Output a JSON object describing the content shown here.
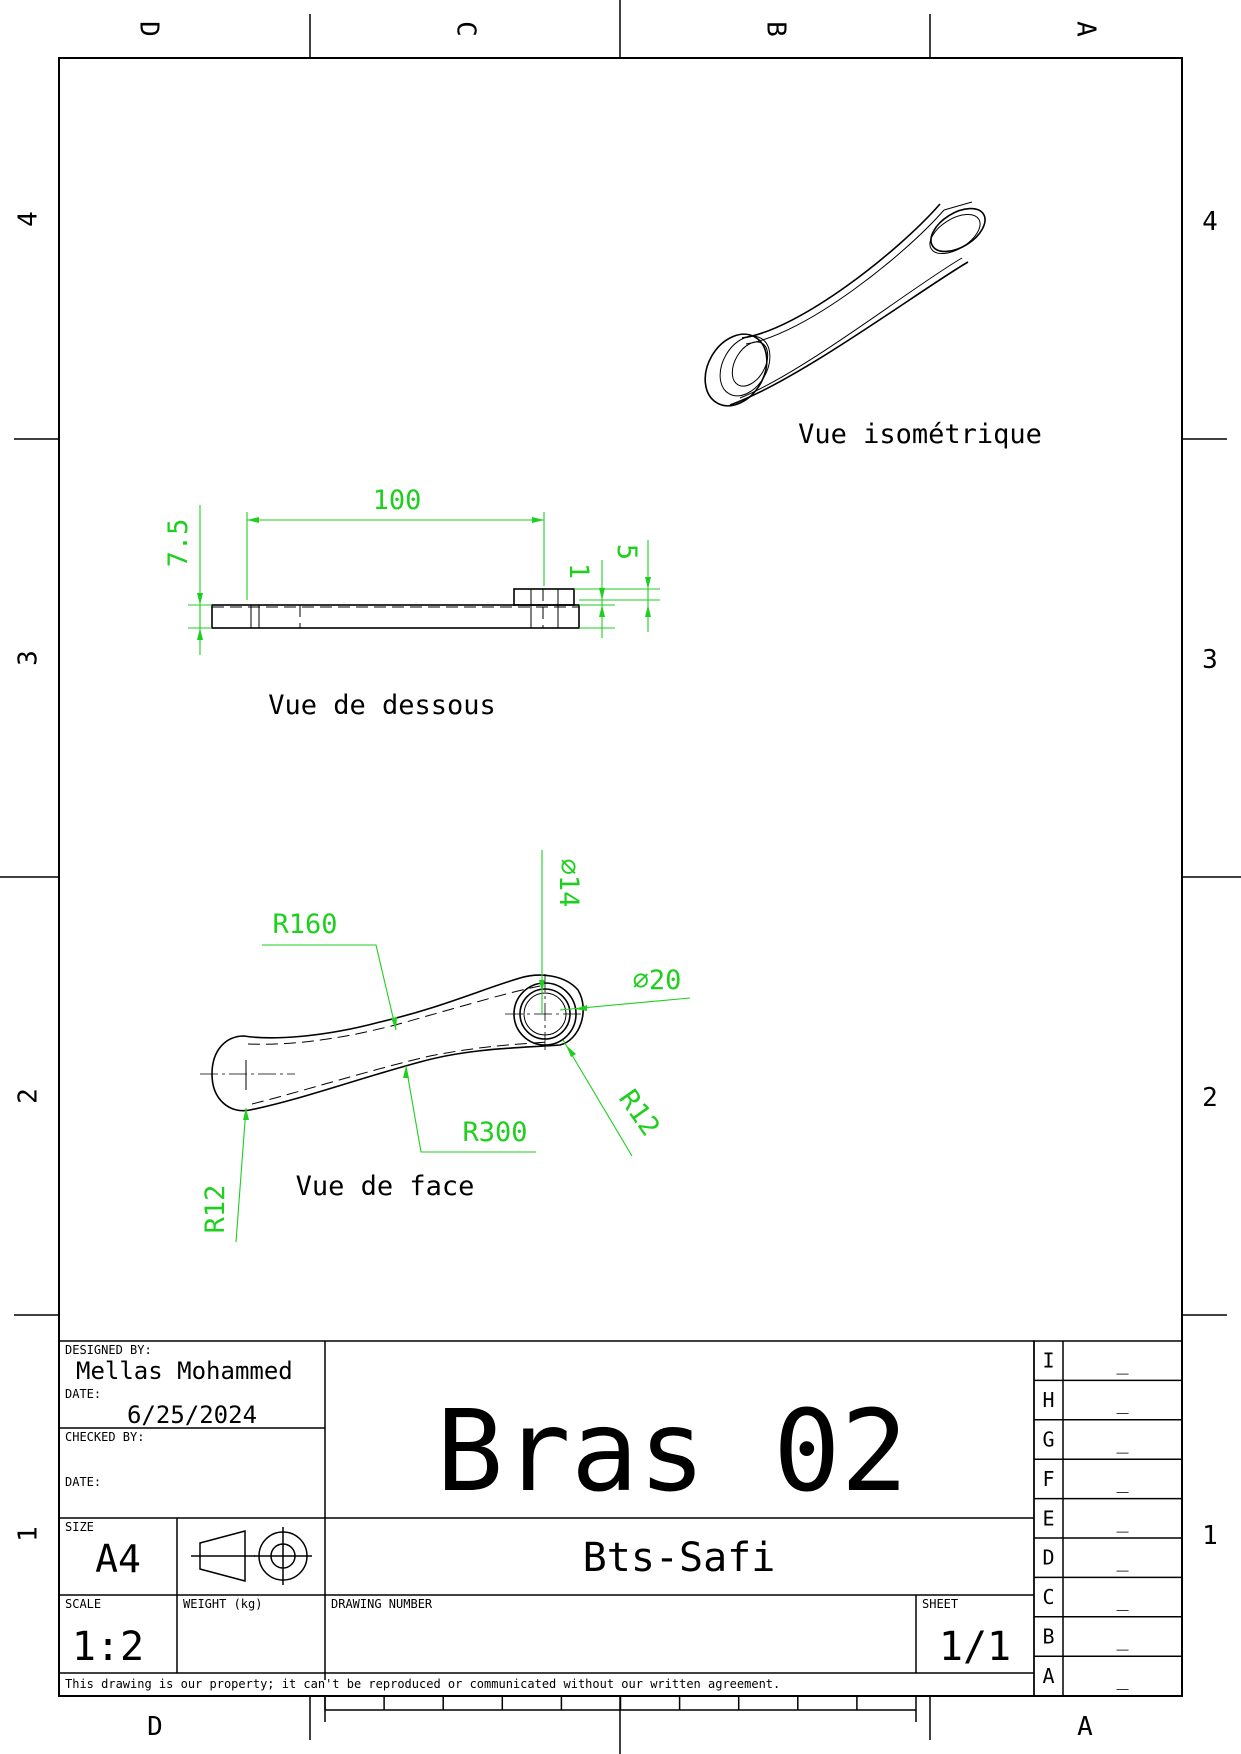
{
  "frame": {
    "columns_top": [
      "D",
      "C",
      "B",
      "A"
    ],
    "columns_bottom": [
      "D",
      "A"
    ],
    "rows_left": [
      "4",
      "3",
      "2",
      "1"
    ],
    "rows_right": [
      "4",
      "3",
      "2",
      "1"
    ]
  },
  "views": {
    "iso_label": "Vue isométrique",
    "bottom_label": "Vue de dessous",
    "front_label": "Vue de face"
  },
  "dimensions": {
    "d100": "100",
    "d7_5": "7.5",
    "d1": "1",
    "d5": "5",
    "r160": "R160",
    "r300": "R300",
    "r12_left": "R12",
    "r12_right": "R12",
    "phi14": "⌀14",
    "phi20": "⌀20"
  },
  "title_block": {
    "designed_by_label": "DESIGNED BY:",
    "designed_by": "Mellas Mohammed",
    "date_label": "DATE:",
    "date": "6/25/2024",
    "checked_by_label": "CHECKED BY:",
    "date2_label": "DATE:",
    "title": "Bras 02",
    "subtitle": "Bts-Safi",
    "size_label": "SIZE",
    "size": "A4",
    "scale_label": "SCALE",
    "scale": "1:2",
    "weight_label": "WEIGHT (kg)",
    "drawing_number_label": "DRAWING NUMBER",
    "sheet_label": "SHEET",
    "sheet": "1/1",
    "disclaimer": "This drawing is our property; it can't be reproduced or communicated without our written agreement.",
    "revisions": [
      {
        "letter": "I",
        "value": "_"
      },
      {
        "letter": "H",
        "value": "_"
      },
      {
        "letter": "G",
        "value": "_"
      },
      {
        "letter": "F",
        "value": "_"
      },
      {
        "letter": "E",
        "value": "_"
      },
      {
        "letter": "D",
        "value": "_"
      },
      {
        "letter": "C",
        "value": "_"
      },
      {
        "letter": "B",
        "value": "_"
      },
      {
        "letter": "A",
        "value": "_"
      }
    ]
  }
}
